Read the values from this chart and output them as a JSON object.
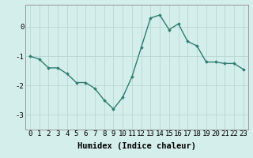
{
  "x": [
    0,
    1,
    2,
    3,
    4,
    5,
    6,
    7,
    8,
    9,
    10,
    11,
    12,
    13,
    14,
    15,
    16,
    17,
    18,
    19,
    20,
    21,
    22,
    23
  ],
  "y": [
    -1.0,
    -1.1,
    -1.4,
    -1.4,
    -1.6,
    -1.9,
    -1.9,
    -2.1,
    -2.5,
    -2.8,
    -2.4,
    -1.7,
    -0.7,
    0.3,
    0.4,
    -0.1,
    0.1,
    -0.5,
    -0.65,
    -1.2,
    -1.2,
    -1.25,
    -1.25,
    -1.45
  ],
  "line_color": "#2e7d6e",
  "marker": "D",
  "marker_size": 1.8,
  "bg_color": "#d4eeeb",
  "grid_color": "#b8d8d4",
  "xlabel": "Humidex (Indice chaleur)",
  "ylabel": "",
  "xlim": [
    -0.5,
    23.5
  ],
  "ylim": [
    -3.5,
    0.75
  ],
  "yticks": [
    -3,
    -2,
    -1,
    0
  ],
  "xticks": [
    0,
    1,
    2,
    3,
    4,
    5,
    6,
    7,
    8,
    9,
    10,
    11,
    12,
    13,
    14,
    15,
    16,
    17,
    18,
    19,
    20,
    21,
    22,
    23
  ],
  "xlabel_fontsize": 7.5,
  "tick_fontsize": 6.5,
  "line_width": 1.0
}
